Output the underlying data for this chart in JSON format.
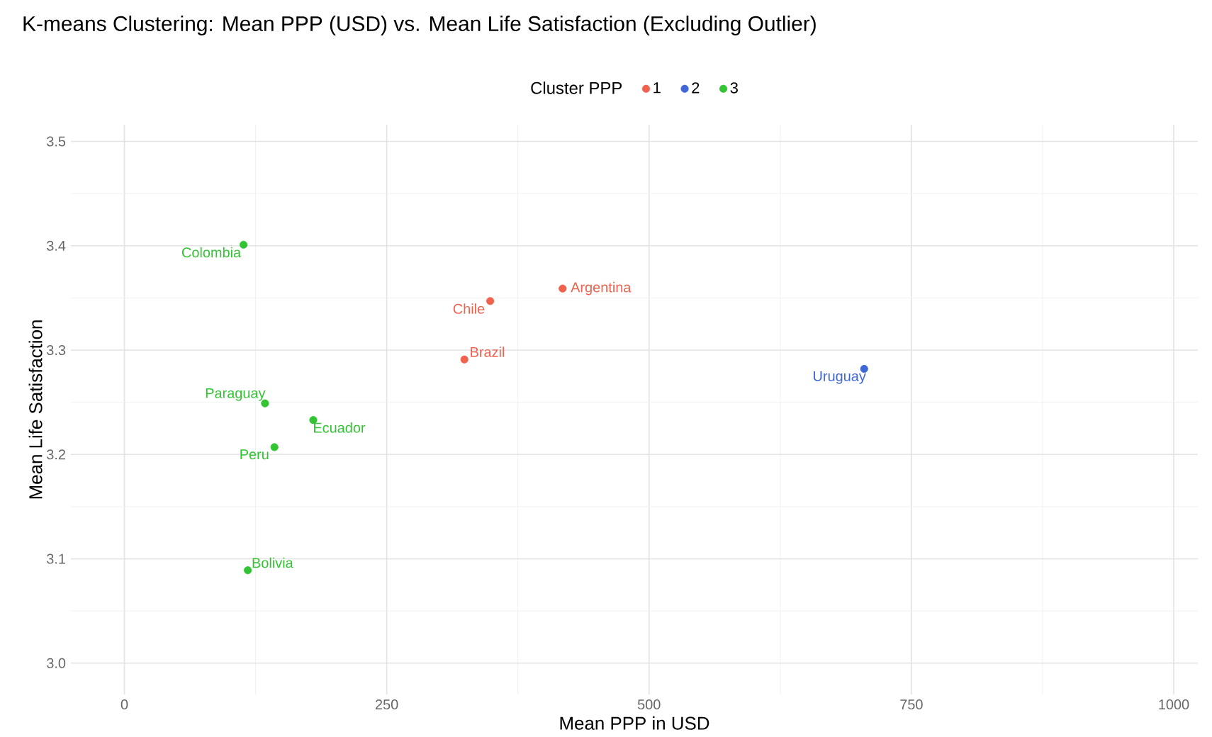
{
  "chart_data": {
    "type": "scatter",
    "title": "K-means Clustering: Mean PPP (USD) vs. Mean Life Satisfaction (Excluding Outlier)",
    "xlabel": "Mean PPP in USD",
    "ylabel": "Mean Life Satisfaction",
    "legend_title": "Cluster PPP",
    "legend": "top",
    "grid": true,
    "series": [
      {
        "name": "1",
        "color": "#f0624d",
        "x": [
          417.6,
          348.6,
          324
        ],
        "values": [
          3.359,
          3.347,
          3.291
        ]
      },
      {
        "name": "2",
        "color": "#3f67d8",
        "x": [
          705
        ],
        "values": [
          3.282
        ]
      },
      {
        "name": "3",
        "color": "#33c433",
        "x": [
          113.5,
          134,
          180,
          143,
          117.6
        ],
        "values": [
          3.401,
          3.249,
          3.233,
          3.207,
          3.089
        ]
      }
    ],
    "annotations": [
      {
        "text": "Colombia",
        "x": 113.5,
        "y": 3.401
      },
      {
        "text": "Argentina",
        "x": 417.6,
        "y": 3.359
      },
      {
        "text": "Chile",
        "x": 348.6,
        "y": 3.347
      },
      {
        "text": "Brazil",
        "x": 324,
        "y": 3.291
      },
      {
        "text": "Uruguay",
        "x": 705,
        "y": 3.282
      },
      {
        "text": "Paraguay",
        "x": 134,
        "y": 3.249
      },
      {
        "text": "Ecuador",
        "x": 180,
        "y": 3.233
      },
      {
        "text": "Peru",
        "x": 143,
        "y": 3.207
      },
      {
        "text": "Bolivia",
        "x": 117.6,
        "y": 3.089
      }
    ],
    "xlim": [
      -51,
      1023
    ],
    "ylim": [
      2.97,
      3.516
    ],
    "xticks": [
      0,
      250,
      500,
      750,
      1000
    ],
    "yticks": [
      {
        "value": 3,
        "label": "3.0"
      },
      3.1,
      3.2,
      3.3,
      3.4,
      3.5
    ]
  }
}
